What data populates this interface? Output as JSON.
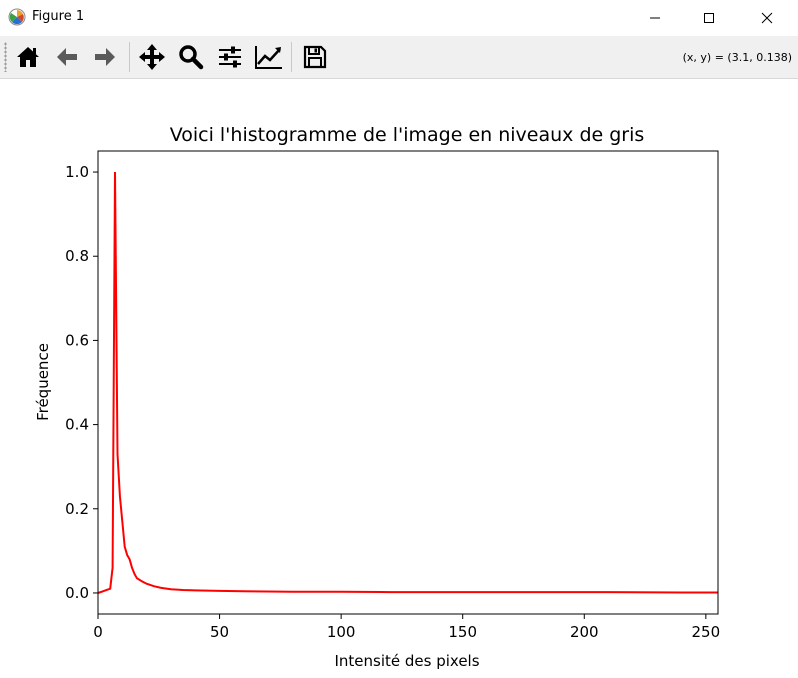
{
  "window": {
    "title": "Figure 1"
  },
  "toolbar": {
    "buttons": [
      {
        "name": "home-button",
        "icon": "home-icon"
      },
      {
        "name": "back-button",
        "icon": "arrow-left-icon"
      },
      {
        "name": "forward-button",
        "icon": "arrow-right-icon"
      },
      {
        "name": "pan-button",
        "icon": "move-icon"
      },
      {
        "name": "zoom-button",
        "icon": "magnifier-icon"
      },
      {
        "name": "subplots-button",
        "icon": "sliders-icon"
      },
      {
        "name": "edit-axis-button",
        "icon": "line-chart-icon"
      },
      {
        "name": "save-button",
        "icon": "floppy-disk-icon"
      }
    ],
    "coordinates": "(x, y) = (3.1, 0.138)"
  },
  "chart_data": {
    "type": "line",
    "title": "Voici l'histogramme de l'image en niveaux de gris",
    "xlabel": "Intensité des pixels",
    "ylabel": "Fréquence",
    "xlim": [
      0,
      255
    ],
    "ylim": [
      -0.05,
      1.05
    ],
    "xticks": [
      "0",
      "50",
      "100",
      "150",
      "200",
      "250"
    ],
    "yticks": [
      "0.0",
      "0.2",
      "0.4",
      "0.6",
      "0.8",
      "1.0"
    ],
    "grid": false,
    "series": [
      {
        "color": "#ff0000",
        "x": [
          0,
          2,
          4,
          5,
          6,
          7,
          8,
          9,
          10,
          11,
          12,
          13,
          14,
          15,
          16,
          18,
          20,
          23,
          26,
          30,
          35,
          40,
          50,
          60,
          80,
          100,
          120,
          150,
          180,
          210,
          240,
          255
        ],
        "y": [
          0.0,
          0.004,
          0.008,
          0.01,
          0.06,
          1.0,
          0.33,
          0.23,
          0.17,
          0.11,
          0.09,
          0.08,
          0.06,
          0.045,
          0.035,
          0.028,
          0.022,
          0.016,
          0.012,
          0.009,
          0.007,
          0.006,
          0.005,
          0.004,
          0.003,
          0.003,
          0.002,
          0.002,
          0.002,
          0.002,
          0.001,
          0.001
        ]
      }
    ]
  }
}
